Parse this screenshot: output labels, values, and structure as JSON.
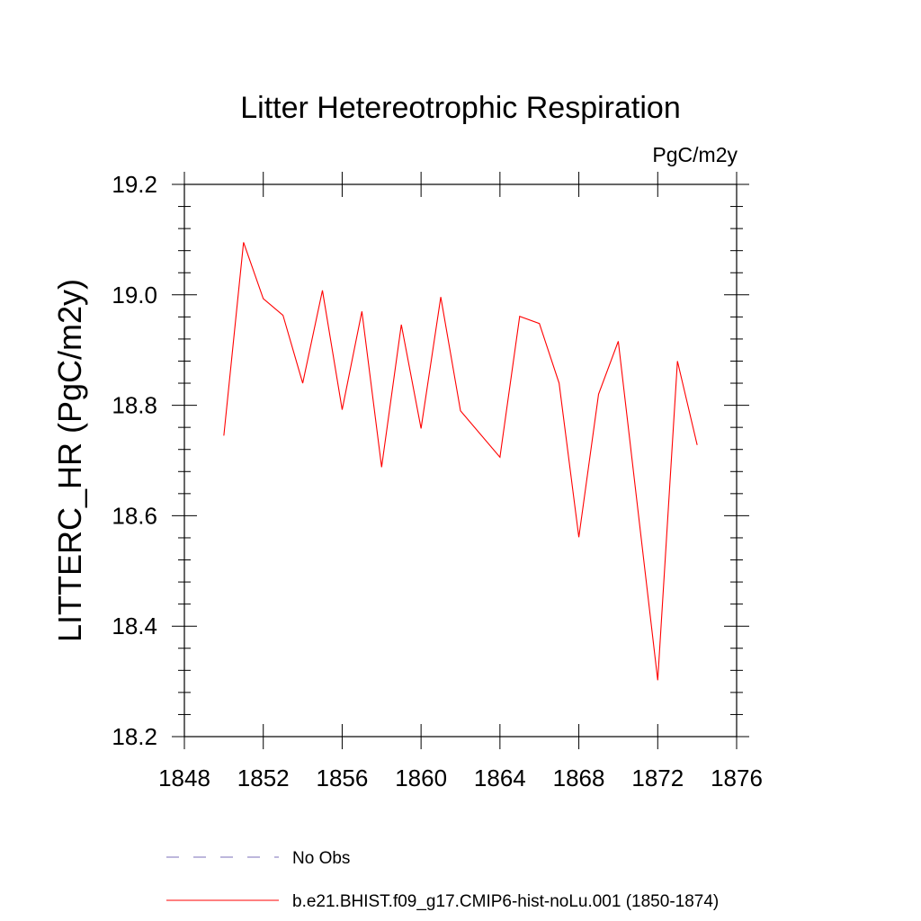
{
  "chart_data": {
    "type": "line",
    "title": "Litter Hetereotrophic Respiration",
    "units": "PgC/m2y",
    "xlabel": "",
    "ylabel": "LITTERC_HR  (PgC/m2y)",
    "xlim": [
      1848,
      1876
    ],
    "ylim": [
      18.2,
      19.2
    ],
    "xticks": [
      1848,
      1852,
      1856,
      1860,
      1864,
      1868,
      1872,
      1876
    ],
    "xtick_labels": [
      "1848",
      "1852",
      "1856",
      "1860",
      "1864",
      "1868",
      "1872",
      "1876"
    ],
    "yticks": [
      18.2,
      18.4,
      18.6,
      18.8,
      19.0,
      19.2
    ],
    "ytick_labels": [
      "18.2",
      "18.4",
      "18.6",
      "18.8",
      "19.0",
      "19.2"
    ],
    "grid": false,
    "legend_position": "bottom",
    "series": [
      {
        "name": "b.e21.BHIST.f09_g17.CMIP6-hist-noLu.001 (1850-1874)",
        "color": "#ff0000",
        "style": "solid",
        "x": [
          1850,
          1851,
          1852,
          1853,
          1854,
          1855,
          1856,
          1857,
          1858,
          1859,
          1860,
          1861,
          1862,
          1864,
          1865,
          1866,
          1867,
          1868,
          1869,
          1870,
          1872,
          1873,
          1874
        ],
        "y": [
          18.745,
          19.095,
          18.993,
          18.963,
          18.84,
          19.008,
          18.792,
          18.97,
          18.688,
          18.946,
          18.758,
          18.996,
          18.79,
          18.706,
          18.961,
          18.948,
          18.84,
          18.561,
          18.82,
          18.916,
          18.302,
          18.88,
          18.728
        ]
      }
    ],
    "legend": [
      {
        "label": "No Obs",
        "color": "#7b6fb8",
        "style": "dashed"
      },
      {
        "label": "b.e21.BHIST.f09_g17.CMIP6-hist-noLu.001 (1850-1874)",
        "color": "#ff0000",
        "style": "solid"
      }
    ]
  }
}
